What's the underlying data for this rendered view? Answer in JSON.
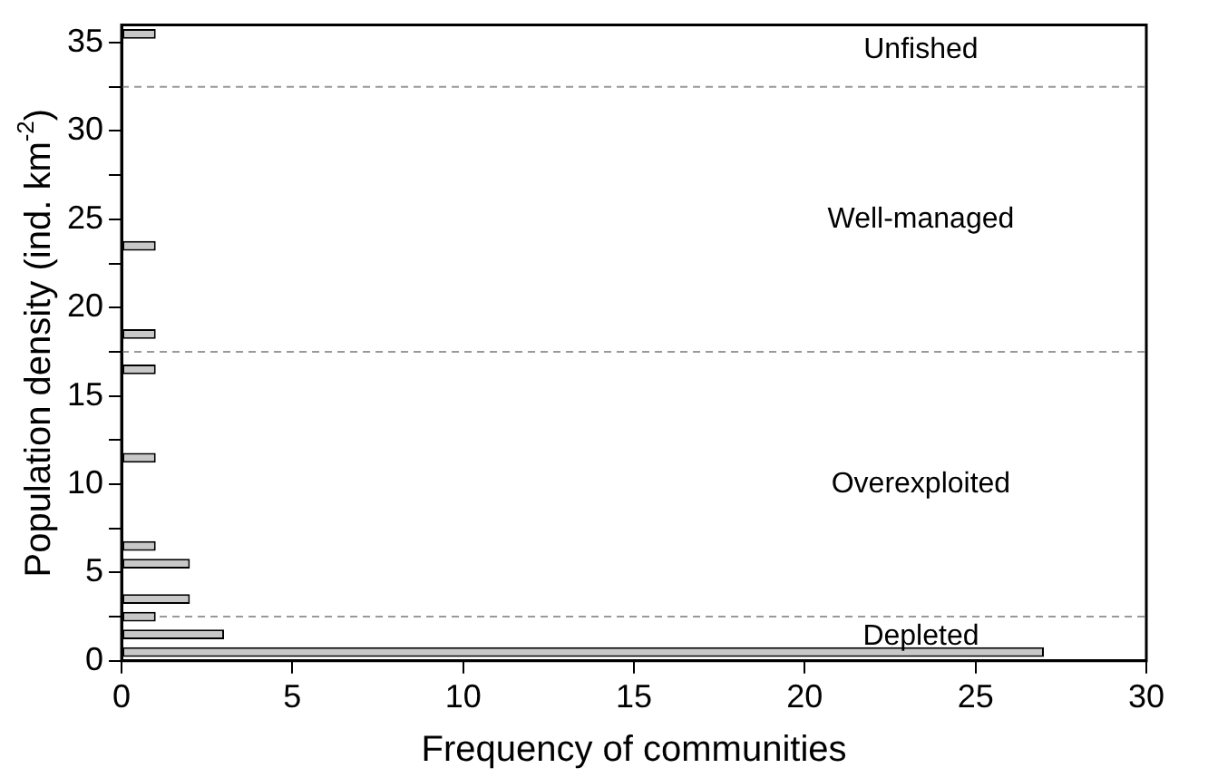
{
  "chart_data": {
    "type": "histogram",
    "orientation": "horizontal",
    "xlabel": "Frequency of communities",
    "ylabel": "Population density (ind. km$^{-2}$)",
    "bins": [
      0,
      1,
      2,
      3,
      4,
      5,
      6,
      7,
      8,
      9,
      10,
      11,
      12,
      13,
      14,
      15,
      16,
      17,
      18,
      19,
      20,
      21,
      22,
      23,
      24,
      25,
      26,
      27,
      28,
      29,
      30,
      31,
      32,
      33,
      34,
      35,
      36
    ],
    "values": [
      27,
      3,
      1,
      2,
      0,
      2,
      1,
      0,
      0,
      0,
      0,
      1,
      0,
      0,
      0,
      0,
      1,
      0,
      1,
      0,
      0,
      0,
      0,
      1,
      0,
      0,
      0,
      0,
      0,
      0,
      0,
      0,
      0,
      0,
      0,
      1
    ],
    "color": "#c8c8c8",
    "xlim": [
      0,
      30
    ],
    "xticks": [
      0,
      5,
      10,
      15,
      20,
      25,
      30
    ],
    "ylim": [
      0,
      36
    ],
    "yticks": [
      0,
      {
        "value": 2.5,
        "label": null
      },
      5,
      {
        "value": 7.5,
        "label": null
      },
      10,
      {
        "value": 12.5,
        "label": null
      },
      15,
      {
        "value": 17.5,
        "label": null
      },
      20,
      {
        "value": 22.5,
        "label": null
      },
      25,
      {
        "value": 27.5,
        "label": null
      },
      30,
      {
        "value": 32.5,
        "label": null
      },
      35
    ],
    "ref_lines": [
      {
        "axis": "y",
        "value": 2.5,
        "color": "#999999",
        "line_style": "dashed"
      },
      {
        "axis": "y",
        "value": 17.5,
        "color": "#999999",
        "line_style": "dashed"
      },
      {
        "axis": "y",
        "value": 32.5,
        "color": "#999999",
        "line_style": "dashed"
      }
    ],
    "annotations": [
      "Unfished",
      "Well-managed",
      "Overexploited",
      "Depleted"
    ],
    "grid": false,
    "legend": false
  }
}
